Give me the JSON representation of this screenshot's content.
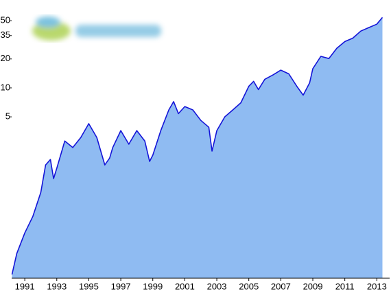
{
  "chart_data": {
    "type": "area",
    "yscale": "log",
    "xlim": [
      1990.18,
      2013.8
    ],
    "ylim": [
      0.105,
      82
    ],
    "xticks": [
      1991,
      1993,
      1995,
      1997,
      1999,
      2001,
      2003,
      2005,
      2007,
      2009,
      2011,
      2013
    ],
    "yticks": [
      5,
      10,
      20,
      35,
      50
    ],
    "series": [
      {
        "line_color": "#1414d8",
        "fill_color": "#8fbbf2",
        "x": [
          1990.2,
          1990.5,
          1991,
          1991.5,
          1992,
          1992.3,
          1992.6,
          1992.8,
          1993,
          1993.5,
          1994,
          1994.5,
          1995,
          1995.5,
          1996,
          1996.3,
          1996.5,
          1997,
          1997.5,
          1998,
          1998.5,
          1998.8,
          1999,
          1999.5,
          2000,
          2000.3,
          2000.6,
          2001,
          2001.5,
          2002,
          2002.5,
          2002.7,
          2003,
          2003.5,
          2004,
          2004.5,
          2005,
          2005.3,
          2005.6,
          2006,
          2006.5,
          2007,
          2007.5,
          2008,
          2008.4,
          2008.8,
          2009,
          2009.5,
          2010,
          2010.5,
          2011,
          2011.5,
          2012,
          2012.5,
          2013,
          2013.35
        ],
        "values": [
          0.115,
          0.19,
          0.31,
          0.46,
          0.82,
          1.58,
          1.8,
          1.14,
          1.46,
          2.8,
          2.4,
          3.05,
          4.25,
          3.05,
          1.58,
          1.86,
          2.4,
          3.6,
          2.6,
          3.6,
          2.8,
          1.72,
          2.0,
          3.6,
          5.9,
          7.2,
          5.4,
          6.4,
          5.9,
          4.6,
          3.9,
          2.2,
          3.6,
          5.0,
          5.9,
          7.0,
          10.4,
          11.7,
          9.6,
          12.3,
          13.6,
          15.3,
          14,
          10.4,
          8.4,
          11.3,
          15.8,
          21.3,
          20.2,
          25.8,
          30.3,
          32.9,
          39,
          42.4,
          46,
          54
        ]
      }
    ]
  }
}
